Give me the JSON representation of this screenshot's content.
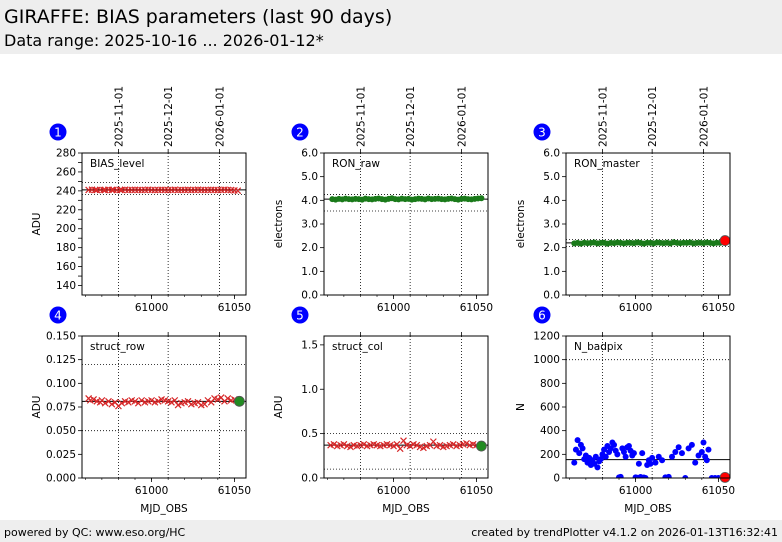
{
  "header": {
    "title": "GIRAFFE: BIAS parameters (last 90 days)",
    "subtitle": "Data range: 2025-10-16 ... 2026-01-12*"
  },
  "footer": {
    "left": "powered by QC: www.eso.org/HC",
    "right": "created by trendPlotter v4.1.2 on 2026-01-13T16:32:41"
  },
  "colors": {
    "header_bg": "#eeeeee",
    "marker_red": "#d62728",
    "marker_green": "#1a7a1a",
    "marker_blue": "#0000ff",
    "badge": "#0000ff"
  },
  "chart_data": [
    {
      "type": "scatter",
      "number": "1",
      "label": "BIAS_level",
      "ylabel": "ADU",
      "xlabel": "",
      "xlim": [
        60958,
        61057
      ],
      "ylim": [
        130,
        280
      ],
      "yticks": [
        140,
        150,
        160,
        170,
        180,
        190,
        200,
        210,
        220,
        230,
        240,
        250,
        260,
        270,
        280
      ],
      "ytick_labels": [
        "140",
        "",
        "160",
        "",
        "180",
        "",
        "200",
        "",
        "220",
        "",
        "240",
        "",
        "260",
        "",
        "280"
      ],
      "xticks": [
        61000,
        61050
      ],
      "xtick_labels": [
        "61000",
        "61050"
      ],
      "date_ticks": [
        "2025-11-01",
        "2025-12-01",
        "2026-01-01"
      ],
      "date_tick_mjd": [
        60980,
        61010,
        61041
      ],
      "ref_line": 241,
      "ref_band": [
        236,
        249
      ],
      "marker": "x",
      "color": "#d62728",
      "x": [
        60962,
        60964,
        60966,
        60967,
        60969,
        60971,
        60972,
        60974,
        60976,
        60977,
        60979,
        60981,
        60982,
        60984,
        60986,
        60988,
        60990,
        60992,
        60994,
        60996,
        60998,
        61000,
        61002,
        61004,
        61006,
        61008,
        61010,
        61012,
        61014,
        61016,
        61018,
        61020,
        61022,
        61024,
        61026,
        61028,
        61030,
        61032,
        61034,
        61036,
        61038,
        61040,
        61042,
        61044,
        61046,
        61048,
        61050,
        61052
      ],
      "y": [
        241,
        241.2,
        241,
        240.8,
        241.1,
        241,
        240.9,
        241.2,
        241,
        241.1,
        240.8,
        241,
        241,
        241.2,
        240.9,
        241,
        241.1,
        241,
        240.8,
        241,
        241.2,
        241,
        240.9,
        241,
        241.1,
        241,
        240.8,
        241,
        241.2,
        240.9,
        241,
        241,
        241.1,
        240.8,
        241,
        241.2,
        241,
        240.9,
        241,
        241.1,
        241,
        240.8,
        241,
        241.2,
        241,
        240.9,
        240.5,
        240.2
      ],
      "highlight": null
    },
    {
      "type": "scatter",
      "number": "2",
      "label": "RON_raw",
      "ylabel": "electrons",
      "xlabel": "",
      "xlim": [
        60958,
        61057
      ],
      "ylim": [
        0,
        6
      ],
      "yticks": [
        0,
        1,
        2,
        3,
        4,
        5,
        6
      ],
      "ytick_labels": [
        "0.0",
        "1.0",
        "2.0",
        "3.0",
        "4.0",
        "5.0",
        "6.0"
      ],
      "xticks": [
        61000,
        61050
      ],
      "xtick_labels": [
        "61000",
        "61050"
      ],
      "date_ticks": [
        "2025-11-01",
        "2025-12-01",
        "2026-01-01"
      ],
      "date_tick_mjd": [
        60980,
        61010,
        61041
      ],
      "ref_line": 4.05,
      "ref_band": [
        3.55,
        4.25
      ],
      "marker": "o",
      "color": "#1a7a1a",
      "x": [
        60963,
        60965,
        60967,
        60969,
        60971,
        60973,
        60975,
        60977,
        60979,
        60981,
        60983,
        60985,
        60987,
        60989,
        60991,
        60993,
        60995,
        60997,
        60999,
        61001,
        61003,
        61005,
        61007,
        61009,
        61011,
        61013,
        61015,
        61017,
        61019,
        61021,
        61023,
        61025,
        61027,
        61029,
        61031,
        61033,
        61035,
        61037,
        61039,
        61041,
        61043,
        61045,
        61047,
        61049,
        61051,
        61053
      ],
      "y": [
        4.05,
        4.03,
        4.06,
        4.04,
        4.07,
        4.05,
        4.04,
        4.06,
        4.05,
        4.03,
        4.07,
        4.05,
        4.04,
        4.06,
        4.08,
        4.05,
        4.03,
        4.06,
        4.09,
        4.05,
        4.04,
        4.07,
        4.05,
        4.06,
        4.03,
        4.05,
        4.07,
        4.06,
        4.04,
        4.08,
        4.05,
        4.06,
        4.07,
        4.05,
        4.04,
        4.06,
        4.08,
        4.05,
        4.03,
        4.06,
        4.07,
        4.05,
        4.04,
        4.06,
        4.08,
        4.09
      ],
      "highlight": null
    },
    {
      "type": "scatter",
      "number": "3",
      "label": "RON_master",
      "ylabel": "electrons",
      "xlabel": "",
      "xlim": [
        60958,
        61057
      ],
      "ylim": [
        0,
        6
      ],
      "yticks": [
        0,
        1,
        2,
        3,
        4,
        5,
        6
      ],
      "ytick_labels": [
        "0.0",
        "1.0",
        "2.0",
        "3.0",
        "4.0",
        "5.0",
        "6.0"
      ],
      "xticks": [
        61000,
        61050
      ],
      "xtick_labels": [
        "61000",
        "61050"
      ],
      "date_ticks": [
        "2025-11-01",
        "2025-12-01",
        "2026-01-01"
      ],
      "date_tick_mjd": [
        60980,
        61010,
        61041
      ],
      "ref_line": 2.2,
      "ref_band": [
        2.05,
        2.35
      ],
      "marker": "o",
      "color": "#1a7a1a",
      "x": [
        60963,
        60965,
        60967,
        60969,
        60971,
        60973,
        60975,
        60977,
        60979,
        60981,
        60983,
        60985,
        60987,
        60989,
        60991,
        60993,
        60995,
        60997,
        60999,
        61001,
        61003,
        61005,
        61007,
        61009,
        61011,
        61013,
        61015,
        61017,
        61019,
        61021,
        61023,
        61025,
        61027,
        61029,
        61031,
        61033,
        61035,
        61037,
        61039,
        61041,
        61043,
        61045,
        61047,
        61049,
        61051
      ],
      "y": [
        2.18,
        2.2,
        2.17,
        2.21,
        2.19,
        2.2,
        2.22,
        2.18,
        2.2,
        2.21,
        2.17,
        2.2,
        2.19,
        2.22,
        2.2,
        2.18,
        2.21,
        2.2,
        2.19,
        2.22,
        2.2,
        2.17,
        2.21,
        2.2,
        2.18,
        2.22,
        2.2,
        2.19,
        2.21,
        2.18,
        2.23,
        2.2,
        2.19,
        2.21,
        2.2,
        2.22,
        2.18,
        2.2,
        2.21,
        2.19,
        2.22,
        2.2,
        2.18,
        2.21,
        2.2
      ],
      "highlight": {
        "x": 61054,
        "y": 2.3,
        "color": "#ff0000"
      }
    },
    {
      "type": "scatter",
      "number": "4",
      "label": "struct_row",
      "ylabel": "ADU",
      "xlabel": "MJD_OBS",
      "xlim": [
        60958,
        61057
      ],
      "ylim": [
        0,
        0.15
      ],
      "yticks": [
        0,
        0.025,
        0.05,
        0.075,
        0.1,
        0.125,
        0.15
      ],
      "ytick_labels": [
        "0.000",
        "0.025",
        "0.050",
        "0.075",
        "0.100",
        "0.125",
        "0.150"
      ],
      "xticks": [
        61000,
        61050
      ],
      "xtick_labels": [
        "61000",
        "61050"
      ],
      "date_ticks": [],
      "date_tick_mjd": [
        60980,
        61010,
        61041
      ],
      "ref_line": 0.081,
      "ref_band": [
        0.05,
        0.12
      ],
      "marker": "x",
      "color": "#d62728",
      "x": [
        60962,
        60963,
        60965,
        60967,
        60969,
        60970,
        60972,
        60974,
        60976,
        60978,
        60980,
        60982,
        60984,
        60986,
        60988,
        60990,
        60992,
        60994,
        60996,
        60998,
        61000,
        61002,
        61004,
        61006,
        61008,
        61010,
        61012,
        61014,
        61016,
        61018,
        61020,
        61022,
        61024,
        61026,
        61028,
        61030,
        61032,
        61034,
        61036,
        61038,
        61040,
        61042,
        61044,
        61046,
        61048,
        61050
      ],
      "y": [
        0.084,
        0.082,
        0.083,
        0.081,
        0.08,
        0.082,
        0.079,
        0.081,
        0.078,
        0.08,
        0.076,
        0.079,
        0.081,
        0.08,
        0.082,
        0.081,
        0.079,
        0.082,
        0.08,
        0.081,
        0.082,
        0.08,
        0.081,
        0.083,
        0.082,
        0.081,
        0.08,
        0.082,
        0.077,
        0.079,
        0.08,
        0.081,
        0.078,
        0.079,
        0.08,
        0.077,
        0.078,
        0.082,
        0.08,
        0.084,
        0.083,
        0.085,
        0.081,
        0.084,
        0.082,
        0.083
      ],
      "highlight": {
        "x": 61053,
        "y": 0.081,
        "color": "#228b22"
      }
    },
    {
      "type": "scatter",
      "number": "5",
      "label": "struct_col",
      "ylabel": "ADU",
      "xlabel": "MJD_OBS",
      "xlim": [
        60958,
        61057
      ],
      "ylim": [
        0,
        1.6
      ],
      "yticks": [
        0,
        0.5,
        1.0,
        1.5
      ],
      "ytick_labels": [
        "0.0",
        "0.5",
        "1.0",
        "1.5"
      ],
      "xticks": [
        61000,
        61050
      ],
      "xtick_labels": [
        "61000",
        "61050"
      ],
      "date_ticks": [],
      "date_tick_mjd": [
        60980,
        61010,
        61041
      ],
      "ref_line": 0.37,
      "ref_band": [
        0.1,
        0.5
      ],
      "marker": "x",
      "color": "#d62728",
      "x": [
        60962,
        60964,
        60966,
        60968,
        60970,
        60972,
        60974,
        60976,
        60978,
        60980,
        60982,
        60984,
        60986,
        60988,
        60990,
        60992,
        60994,
        60996,
        60998,
        61000,
        61002,
        61004,
        61006,
        61008,
        61010,
        61012,
        61014,
        61016,
        61018,
        61020,
        61022,
        61024,
        61026,
        61028,
        61030,
        61032,
        61034,
        61036,
        61038,
        61040,
        61042,
        61044,
        61046,
        61048,
        61050
      ],
      "y": [
        0.37,
        0.38,
        0.36,
        0.37,
        0.38,
        0.36,
        0.35,
        0.37,
        0.36,
        0.37,
        0.38,
        0.36,
        0.37,
        0.38,
        0.37,
        0.36,
        0.37,
        0.38,
        0.37,
        0.36,
        0.38,
        0.33,
        0.42,
        0.37,
        0.36,
        0.38,
        0.37,
        0.35,
        0.34,
        0.36,
        0.37,
        0.41,
        0.36,
        0.37,
        0.35,
        0.36,
        0.37,
        0.38,
        0.36,
        0.37,
        0.38,
        0.39,
        0.37,
        0.38,
        0.37
      ],
      "highlight": {
        "x": 61053,
        "y": 0.36,
        "color": "#228b22"
      }
    },
    {
      "type": "scatter",
      "number": "6",
      "label": "N_badpix",
      "ylabel": "N",
      "xlabel": "MJD_OBS",
      "xlim": [
        60958,
        61057
      ],
      "ylim": [
        0,
        1200
      ],
      "yticks": [
        0,
        200,
        400,
        600,
        800,
        1000,
        1200
      ],
      "ytick_labels": [
        "0",
        "200",
        "400",
        "600",
        "800",
        "1000",
        "1200"
      ],
      "xticks": [
        61000,
        61050
      ],
      "xtick_labels": [
        "61000",
        "61050"
      ],
      "date_ticks": [],
      "date_tick_mjd": [
        60980,
        61010,
        61041
      ],
      "ref_line": 155,
      "ref_band": [
        0,
        1000
      ],
      "marker": "o",
      "color": "#0000ff",
      "x": [
        60963,
        60964,
        60965,
        60966,
        60967,
        60968,
        60969,
        60970,
        60971,
        60972,
        60973,
        60974,
        60975,
        60976,
        60977,
        60978,
        60979,
        60980,
        60981,
        60982,
        60983,
        60984,
        60985,
        60986,
        60987,
        60988,
        60989,
        60990,
        60991,
        60992,
        60993,
        60994,
        60995,
        60996,
        60997,
        60998,
        60999,
        61000,
        61001,
        61002,
        61003,
        61004,
        61005,
        61006,
        61007,
        61008,
        61009,
        61010,
        61012,
        61014,
        61016,
        61018,
        61020,
        61022,
        61024,
        61026,
        61028,
        61030,
        61032,
        61034,
        61036,
        61038,
        61040,
        61041,
        61042,
        61043,
        61044,
        61046,
        61048,
        61050,
        61052
      ],
      "y": [
        130,
        240,
        320,
        210,
        280,
        250,
        160,
        190,
        130,
        170,
        110,
        150,
        120,
        180,
        90,
        140,
        160,
        200,
        240,
        180,
        270,
        220,
        250,
        300,
        280,
        230,
        200,
        5,
        10,
        250,
        220,
        180,
        260,
        270,
        230,
        190,
        210,
        5,
        2,
        120,
        8,
        210,
        4,
        0,
        110,
        150,
        120,
        170,
        130,
        180,
        150,
        5,
        10,
        180,
        220,
        260,
        210,
        0,
        250,
        280,
        130,
        190,
        220,
        300,
        180,
        150,
        240,
        0,
        0,
        0,
        0
      ],
      "highlight": {
        "x": 61054,
        "y": 5,
        "color": "#ff0000"
      }
    }
  ]
}
